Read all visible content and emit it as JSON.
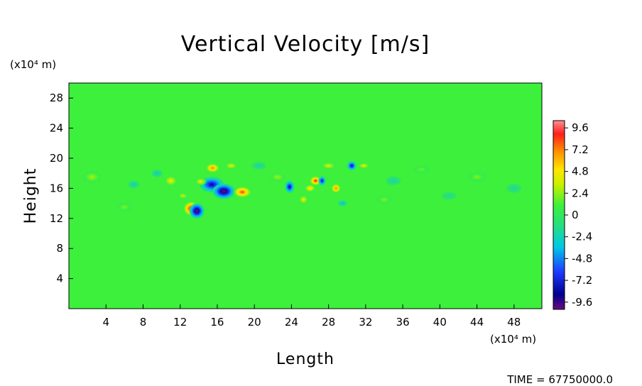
{
  "chart_data": {
    "type": "heatmap",
    "title": "Vertical Velocity [m/s]",
    "xlabel": "Length",
    "ylabel": "Height",
    "x_unit": "(x10⁴ m)",
    "y_unit": "(x10⁴ m)",
    "xlim": [
      0,
      51
    ],
    "ylim": [
      0,
      30
    ],
    "x_ticks": [
      "4",
      "8",
      "12",
      "16",
      "20",
      "24",
      "28",
      "32",
      "36",
      "40",
      "44",
      "48"
    ],
    "y_ticks": [
      "4",
      "8",
      "12",
      "16",
      "20",
      "24",
      "28"
    ],
    "colorbar": {
      "min": -10.4,
      "max": 10.4,
      "labels": [
        "9.6",
        "7.2",
        "4.8",
        "2.4",
        "0",
        "-2.4",
        "-4.8",
        "-7.2",
        "-9.6"
      ]
    },
    "background_value": 0,
    "features": [
      {
        "x": 13.2,
        "y": 13.3,
        "value": 9.6,
        "rx": 0.8,
        "ry": 0.9
      },
      {
        "x": 13.8,
        "y": 13.0,
        "value": -10.0,
        "rx": 0.8,
        "ry": 1.0
      },
      {
        "x": 15.4,
        "y": 16.5,
        "value": -8.0,
        "rx": 1.3,
        "ry": 1.0
      },
      {
        "x": 16.7,
        "y": 15.6,
        "value": -10.0,
        "rx": 1.2,
        "ry": 1.0
      },
      {
        "x": 14.2,
        "y": 16.9,
        "value": 4.0,
        "rx": 0.6,
        "ry": 0.5
      },
      {
        "x": 15.5,
        "y": 18.7,
        "value": 7.0,
        "rx": 0.7,
        "ry": 0.6
      },
      {
        "x": 18.7,
        "y": 15.5,
        "value": 8.0,
        "rx": 0.9,
        "ry": 0.7
      },
      {
        "x": 11.0,
        "y": 17.0,
        "value": 4.0,
        "rx": 0.7,
        "ry": 0.7
      },
      {
        "x": 17.5,
        "y": 19.0,
        "value": 3.5,
        "rx": 0.7,
        "ry": 0.5
      },
      {
        "x": 12.3,
        "y": 15.0,
        "value": 3.0,
        "rx": 0.6,
        "ry": 0.5
      },
      {
        "x": 23.8,
        "y": 16.2,
        "value": -8.0,
        "rx": 0.5,
        "ry": 0.8
      },
      {
        "x": 26.6,
        "y": 17.0,
        "value": 8.5,
        "rx": 0.6,
        "ry": 0.6
      },
      {
        "x": 27.3,
        "y": 17.0,
        "value": -7.5,
        "rx": 0.4,
        "ry": 0.6
      },
      {
        "x": 26.0,
        "y": 16.0,
        "value": 5.0,
        "rx": 0.6,
        "ry": 0.5
      },
      {
        "x": 25.3,
        "y": 14.5,
        "value": 4.0,
        "rx": 0.5,
        "ry": 0.6
      },
      {
        "x": 28.8,
        "y": 16.0,
        "value": 7.0,
        "rx": 0.5,
        "ry": 0.6
      },
      {
        "x": 30.5,
        "y": 19.0,
        "value": -8.0,
        "rx": 0.5,
        "ry": 0.6
      },
      {
        "x": 31.8,
        "y": 19.0,
        "value": 4.0,
        "rx": 0.6,
        "ry": 0.4
      },
      {
        "x": 28.0,
        "y": 19.0,
        "value": 3.5,
        "rx": 0.8,
        "ry": 0.5
      },
      {
        "x": 29.5,
        "y": 14.0,
        "value": -3.5,
        "rx": 0.5,
        "ry": 0.4
      },
      {
        "x": 22.5,
        "y": 17.5,
        "value": 2.5,
        "rx": 0.8,
        "ry": 0.6
      },
      {
        "x": 2.5,
        "y": 17.5,
        "value": 2.5,
        "rx": 1.0,
        "ry": 0.8
      },
      {
        "x": 7.0,
        "y": 16.5,
        "value": -2.5,
        "rx": 0.6,
        "ry": 0.5
      },
      {
        "x": 9.5,
        "y": 18.0,
        "value": -2.5,
        "rx": 0.6,
        "ry": 0.5
      },
      {
        "x": 6.0,
        "y": 13.5,
        "value": 2.0,
        "rx": 0.8,
        "ry": 0.6
      },
      {
        "x": 20.5,
        "y": 19.0,
        "value": -2.0,
        "rx": 0.8,
        "ry": 0.5
      },
      {
        "x": 35.0,
        "y": 17.0,
        "value": -2.0,
        "rx": 0.8,
        "ry": 0.6
      },
      {
        "x": 34.0,
        "y": 14.5,
        "value": 2.0,
        "rx": 0.8,
        "ry": 0.6
      },
      {
        "x": 44.0,
        "y": 17.5,
        "value": 2.0,
        "rx": 1.0,
        "ry": 0.6
      },
      {
        "x": 48.0,
        "y": 16.0,
        "value": -1.8,
        "rx": 0.8,
        "ry": 0.6
      },
      {
        "x": 41.0,
        "y": 15.0,
        "value": -1.5,
        "rx": 0.8,
        "ry": 0.5
      },
      {
        "x": 38.0,
        "y": 18.5,
        "value": 1.8,
        "rx": 0.8,
        "ry": 0.5
      }
    ]
  },
  "footer": {
    "time_label": "TIME = 67750000.0"
  }
}
